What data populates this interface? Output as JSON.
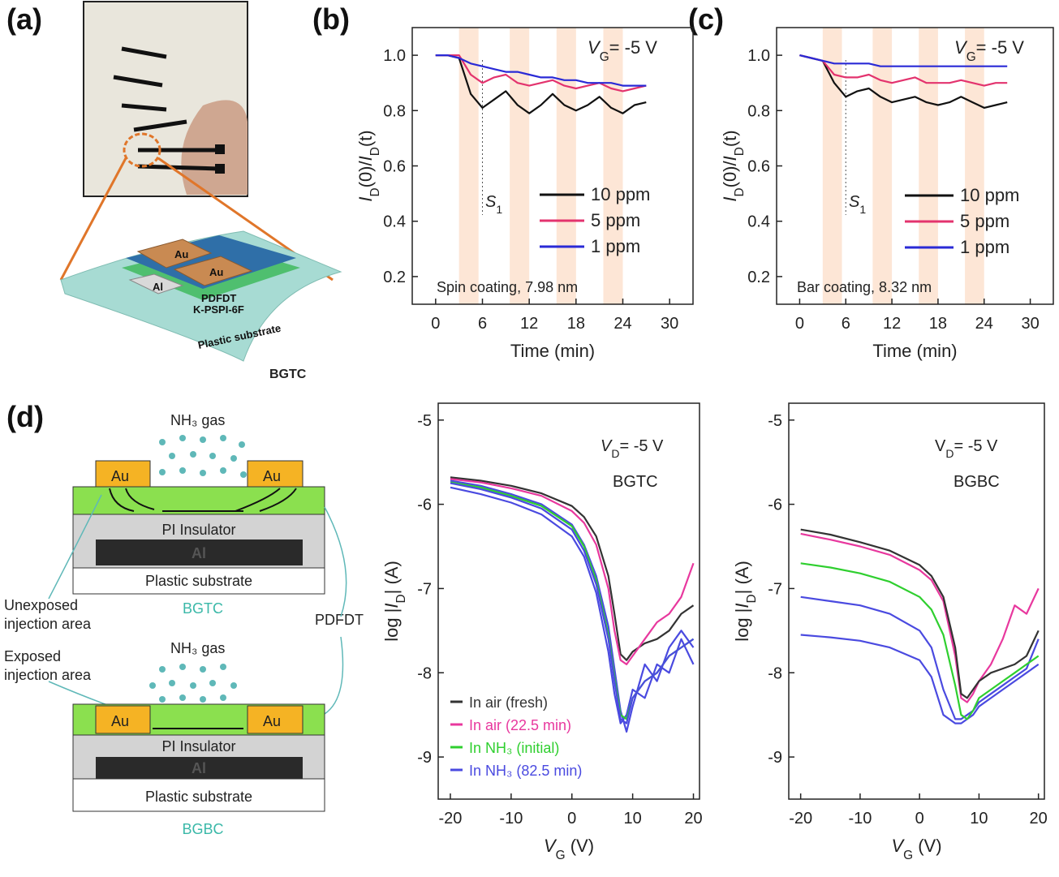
{
  "panel_labels": [
    "(a)",
    "(b)",
    "(c)",
    "(d)"
  ],
  "panel_a": {
    "labels": [
      "Au",
      "Au",
      "PDFDT",
      "K-PSPI-6F",
      "Al",
      "Plastic substrate",
      "BGTC"
    ]
  },
  "panel_d_diagram": {
    "top": {
      "gas": "NH₃ gas",
      "electrodes": [
        "Au",
        "Au"
      ],
      "insulator": "PI Insulator",
      "gate": "Al",
      "substrate": "Plastic substrate",
      "caption": "BGTC"
    },
    "bottom": {
      "gas": "NH₃ gas",
      "electrodes": [
        "Au",
        "Au"
      ],
      "insulator": "PI Insulator",
      "gate": "Al",
      "substrate": "Plastic substrate",
      "caption": "BGBC"
    },
    "callouts": {
      "unexposed": [
        "Unexposed",
        "injection area"
      ],
      "exposed": [
        "Exposed",
        "injection area"
      ],
      "semiconductor": "PDFDT"
    }
  },
  "chart_data": [
    {
      "type": "line",
      "x_label": "Time (min)",
      "y_label": [
        {
          "text": "I",
          "italic": true
        },
        {
          "text": "D",
          "sub": true
        },
        {
          "text": "(0)/"
        },
        {
          "text": "I",
          "italic": true
        },
        {
          "text": "D",
          "sub": true
        },
        {
          "text": "(t)"
        }
      ],
      "x": [
        0,
        1.5,
        3,
        4.5,
        6,
        7.5,
        9,
        10.5,
        12,
        13.5,
        15,
        16.5,
        18,
        19.5,
        21,
        22.5,
        24,
        25.5,
        27
      ],
      "series": [
        {
          "name": "10 ppm",
          "color": "#111111",
          "values": [
            1.0,
            1.0,
            0.99,
            0.86,
            0.81,
            0.84,
            0.87,
            0.82,
            0.79,
            0.82,
            0.86,
            0.82,
            0.8,
            0.82,
            0.85,
            0.81,
            0.79,
            0.82,
            0.83
          ]
        },
        {
          "name": "5 ppm",
          "color": "#e3336e",
          "values": [
            1.0,
            1.0,
            1.0,
            0.93,
            0.9,
            0.92,
            0.93,
            0.9,
            0.89,
            0.9,
            0.91,
            0.89,
            0.88,
            0.89,
            0.9,
            0.88,
            0.87,
            0.88,
            0.89
          ]
        },
        {
          "name": "1 ppm",
          "color": "#2a2ad6",
          "values": [
            1.0,
            1.0,
            0.99,
            0.97,
            0.96,
            0.95,
            0.94,
            0.94,
            0.93,
            0.92,
            0.92,
            0.91,
            0.91,
            0.9,
            0.9,
            0.9,
            0.89,
            0.89,
            0.89
          ]
        }
      ],
      "xlim": [
        -3,
        33
      ],
      "ylim": [
        0.1,
        1.1
      ],
      "xticks": [
        0,
        6,
        12,
        18,
        24,
        30
      ],
      "yticks": [
        0.2,
        0.4,
        0.6,
        0.8,
        {
          "value": 1,
          "label": "1.0"
        }
      ],
      "shaded_intervals": [
        [
          3,
          5.5
        ],
        [
          9.5,
          12
        ],
        [
          15.5,
          18
        ],
        [
          21.5,
          24
        ]
      ],
      "marker_x": 6,
      "legend": "right",
      "annotations": [
        [
          {
            "text": "V",
            "italic": true
          },
          {
            "text": "G",
            "sub": true
          },
          {
            "text": "= -5 V"
          }
        ],
        [
          {
            "text": "S",
            "italic": true
          },
          {
            "text": "1",
            "sub": true
          }
        ],
        [
          {
            "text": "Spin coating, 7.98 nm"
          }
        ]
      ]
    },
    {
      "type": "line",
      "x_label": "Time (min)",
      "y_label": [
        {
          "text": "I",
          "italic": true
        },
        {
          "text": "D",
          "sub": true
        },
        {
          "text": "(0)/"
        },
        {
          "text": "I",
          "italic": true
        },
        {
          "text": "D",
          "sub": true
        },
        {
          "text": "(t)"
        }
      ],
      "x": [
        0,
        1.5,
        3,
        4.5,
        6,
        7.5,
        9,
        10.5,
        12,
        13.5,
        15,
        16.5,
        18,
        19.5,
        21,
        22.5,
        24,
        25.5,
        27
      ],
      "series": [
        {
          "name": "10 ppm",
          "color": "#111111",
          "values": [
            1.0,
            0.99,
            0.98,
            0.9,
            0.85,
            0.87,
            0.88,
            0.85,
            0.83,
            0.84,
            0.85,
            0.83,
            0.82,
            0.83,
            0.85,
            0.83,
            0.81,
            0.82,
            0.83
          ]
        },
        {
          "name": "5 ppm",
          "color": "#e3336e",
          "values": [
            1.0,
            0.99,
            0.98,
            0.93,
            0.92,
            0.92,
            0.93,
            0.91,
            0.9,
            0.91,
            0.92,
            0.9,
            0.9,
            0.9,
            0.91,
            0.9,
            0.89,
            0.9,
            0.9
          ]
        },
        {
          "name": "1 ppm",
          "color": "#2a2ad6",
          "values": [
            1.0,
            0.99,
            0.98,
            0.97,
            0.97,
            0.97,
            0.97,
            0.96,
            0.96,
            0.96,
            0.96,
            0.96,
            0.96,
            0.96,
            0.96,
            0.96,
            0.96,
            0.96,
            0.96
          ]
        }
      ],
      "xlim": [
        -3,
        33
      ],
      "ylim": [
        0.1,
        1.1
      ],
      "xticks": [
        0,
        6,
        12,
        18,
        24,
        30
      ],
      "yticks": [
        0.2,
        0.4,
        0.6,
        0.8,
        {
          "value": 1,
          "label": "1.0"
        }
      ],
      "shaded_intervals": [
        [
          3,
          5.5
        ],
        [
          9.5,
          12
        ],
        [
          15.5,
          18
        ],
        [
          21.5,
          24
        ]
      ],
      "marker_x": 6,
      "legend": "right",
      "annotations": [
        [
          {
            "text": "V",
            "italic": true
          },
          {
            "text": "G",
            "sub": true
          },
          {
            "text": "= -5 V"
          }
        ],
        [
          {
            "text": "S",
            "italic": true
          },
          {
            "text": "1",
            "sub": true
          }
        ],
        [
          {
            "text": "Bar coating, 8.32 nm"
          }
        ]
      ]
    },
    {
      "type": "line",
      "x_label": [
        {
          "text": "V",
          "italic": true
        },
        {
          "text": "G",
          "sub": true
        },
        {
          "text": " (V)"
        }
      ],
      "y_label": [
        {
          "text": "log |"
        },
        {
          "text": "I",
          "italic": true
        },
        {
          "text": "D",
          "sub": true
        },
        {
          "text": "|  (A)"
        }
      ],
      "x": [
        -20,
        -15,
        -10,
        -5,
        0,
        2,
        4,
        6,
        7,
        8,
        9,
        10,
        12,
        14,
        16,
        18,
        20
      ],
      "series": [
        {
          "color": "#4a4ae0",
          "values": [
            -5.8,
            -5.88,
            -5.98,
            -6.12,
            -6.38,
            -6.62,
            -7.05,
            -7.75,
            -8.25,
            -8.6,
            -8.5,
            -8.2,
            -8.3,
            -7.9,
            -8.0,
            -7.6,
            -7.9
          ]
        },
        {
          "color": "#4a4ae0",
          "values": [
            -5.72,
            -5.78,
            -5.88,
            -6.0,
            -6.24,
            -6.48,
            -6.85,
            -7.45,
            -7.95,
            -8.45,
            -8.7,
            -8.4,
            -7.9,
            -8.1,
            -7.7,
            -7.5,
            -7.7
          ]
        },
        {
          "name": "In air (fresh)",
          "color": "#333333",
          "values": [
            -5.68,
            -5.72,
            -5.78,
            -5.87,
            -6.02,
            -6.15,
            -6.38,
            -6.85,
            -7.3,
            -7.78,
            -7.85,
            -7.75,
            -7.65,
            -7.6,
            -7.5,
            -7.3,
            -7.2
          ]
        },
        {
          "name": "In air (22.5 min)",
          "color": "#e8389e",
          "values": [
            -5.7,
            -5.74,
            -5.81,
            -5.9,
            -6.08,
            -6.22,
            -6.48,
            -7.0,
            -7.5,
            -7.85,
            -7.9,
            -7.8,
            -7.6,
            -7.4,
            -7.3,
            -7.1,
            -6.7
          ]
        },
        {
          "name": "In NH₃  (initial)",
          "color": "#2fcf2f",
          "values": [
            -5.74,
            -5.8,
            -5.9,
            -6.02,
            -6.26,
            -6.5,
            -6.9,
            -7.55,
            -8.05,
            -8.5,
            -8.55,
            -8.3,
            -8.1,
            -8.0,
            -7.8,
            -7.7,
            -7.6
          ]
        },
        {
          "name": "In NH₃ (82.5 min)",
          "color": "#4a4ae0",
          "values": [
            -5.75,
            -5.82,
            -5.92,
            -6.05,
            -6.3,
            -6.55,
            -6.95,
            -7.6,
            -8.1,
            -8.55,
            -8.6,
            -8.3,
            -8.1,
            -8.0,
            -7.8,
            -7.7,
            -7.6
          ]
        }
      ],
      "xlim": [
        -22,
        21
      ],
      "ylim": [
        -9.5,
        -4.8
      ],
      "xticks": [
        -20,
        -10,
        0,
        10,
        20
      ],
      "yticks": [
        -9,
        -8,
        -7,
        -6,
        -5
      ],
      "legend": "bottom-left",
      "annotations": [
        [
          {
            "text": "V",
            "italic": true
          },
          {
            "text": "D",
            "sub": true
          },
          {
            "text": "= -5 V"
          }
        ],
        [
          {
            "text": "BGTC"
          }
        ]
      ]
    },
    {
      "type": "line",
      "x_label": [
        {
          "text": "V",
          "italic": true
        },
        {
          "text": "G",
          "sub": true
        },
        {
          "text": " (V)"
        }
      ],
      "y_label": [
        {
          "text": "log |"
        },
        {
          "text": "I",
          "italic": true
        },
        {
          "text": "D",
          "sub": true
        },
        {
          "text": "|  (A)"
        }
      ],
      "x": [
        -20,
        -15,
        -10,
        -5,
        0,
        2,
        4,
        6,
        7,
        8,
        9,
        10,
        12,
        14,
        16,
        18,
        20
      ],
      "series": [
        {
          "color": "#4a4ae0",
          "values": [
            -7.1,
            -7.15,
            -7.2,
            -7.3,
            -7.5,
            -7.7,
            -8.2,
            -8.55,
            -8.55,
            -8.5,
            -8.45,
            -8.35,
            -8.25,
            -8.15,
            -8.05,
            -7.95,
            -7.6
          ]
        },
        {
          "color": "#4a4ae0",
          "values": [
            -7.55,
            -7.58,
            -7.62,
            -7.7,
            -7.85,
            -8.05,
            -8.5,
            -8.6,
            -8.6,
            -8.55,
            -8.5,
            -8.4,
            -8.3,
            -8.2,
            -8.1,
            -8.0,
            -7.9
          ]
        },
        {
          "color": "#2fcf2f",
          "values": [
            -6.7,
            -6.75,
            -6.82,
            -6.92,
            -7.1,
            -7.25,
            -7.55,
            -8.15,
            -8.5,
            -8.55,
            -8.45,
            -8.3,
            -8.2,
            -8.1,
            -8.0,
            -7.9,
            -7.8
          ]
        },
        {
          "color": "#e8389e",
          "values": [
            -6.35,
            -6.42,
            -6.5,
            -6.6,
            -6.78,
            -6.9,
            -7.15,
            -7.8,
            -8.3,
            -8.35,
            -8.25,
            -8.1,
            -7.9,
            -7.6,
            -7.2,
            -7.3,
            -7.0
          ]
        },
        {
          "color": "#333333",
          "values": [
            -6.3,
            -6.36,
            -6.45,
            -6.55,
            -6.72,
            -6.85,
            -7.1,
            -7.7,
            -8.25,
            -8.3,
            -8.2,
            -8.1,
            -8.0,
            -7.95,
            -7.9,
            -7.8,
            -7.5
          ]
        }
      ],
      "xlim": [
        -22,
        21
      ],
      "ylim": [
        -9.5,
        -4.8
      ],
      "xticks": [
        -20,
        -10,
        0,
        10,
        20
      ],
      "yticks": [
        -9,
        -8,
        -7,
        -6,
        -5
      ],
      "annotations": [
        [
          {
            "text": "V"
          },
          {
            "text": "D",
            "sub": true
          },
          {
            "text": "= -5 V"
          }
        ],
        [
          {
            "text": "BGBC"
          }
        ]
      ]
    }
  ]
}
